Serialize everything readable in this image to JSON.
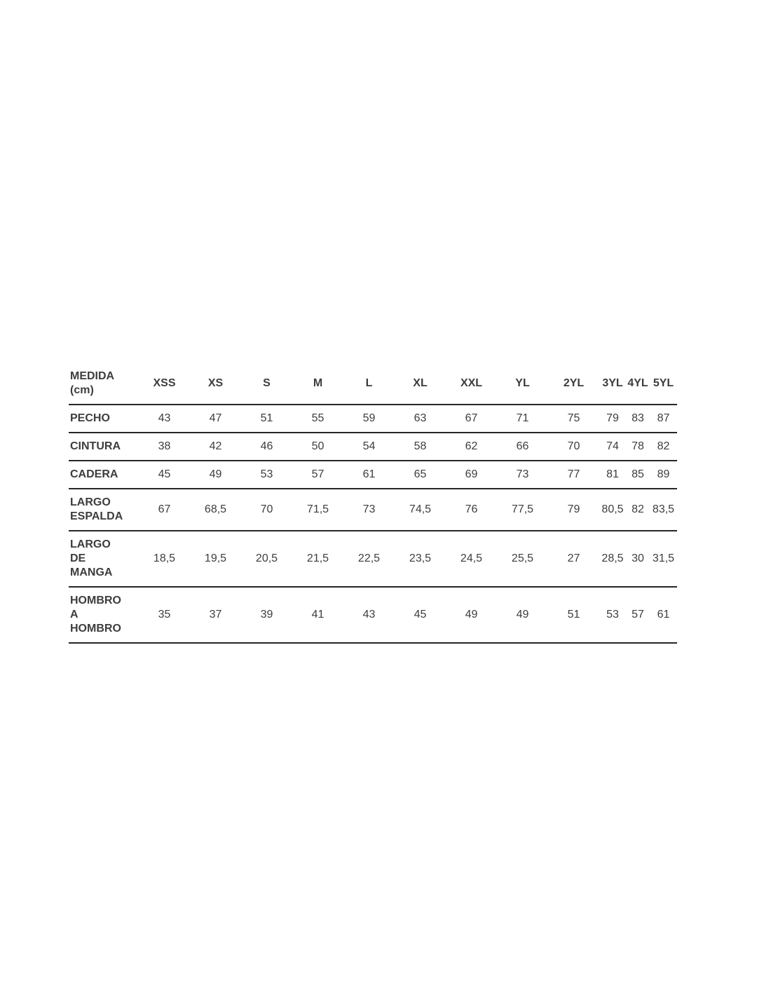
{
  "colors": {
    "text": "#3d3d3d",
    "line": "#262626",
    "background": "#ffffff"
  },
  "chart_data": {
    "type": "table",
    "title": "MEDIDA (cm)",
    "columns": [
      "XSS",
      "XS",
      "S",
      "M",
      "L",
      "XL",
      "XXL",
      "YL",
      "2YL",
      "3YL",
      "4YL",
      "5YL"
    ],
    "rows": [
      {
        "label": "PECHO",
        "values": [
          "43",
          "47",
          "51",
          "55",
          "59",
          "63",
          "67",
          "71",
          "75",
          "79",
          "83",
          "87"
        ]
      },
      {
        "label": "CINTURA",
        "values": [
          "38",
          "42",
          "46",
          "50",
          "54",
          "58",
          "62",
          "66",
          "70",
          "74",
          "78",
          "82"
        ]
      },
      {
        "label": "CADERA",
        "values": [
          "45",
          "49",
          "53",
          "57",
          "61",
          "65",
          "69",
          "73",
          "77",
          "81",
          "85",
          "89"
        ]
      },
      {
        "label": "LARGO ESPALDA",
        "values": [
          "67",
          "68,5",
          "70",
          "71,5",
          "73",
          "74,5",
          "76",
          "77,5",
          "79",
          "80,5",
          "82",
          "83,5"
        ]
      },
      {
        "label": "LARGO DE MANGA",
        "values": [
          "18,5",
          "19,5",
          "20,5",
          "21,5",
          "22,5",
          "23,5",
          "24,5",
          "25,5",
          "27",
          "28,5",
          "30",
          "31,5"
        ]
      },
      {
        "label": "HOMBRO A HOMBRO",
        "values": [
          "35",
          "37",
          "39",
          "41",
          "43",
          "45",
          "49",
          "49",
          "51",
          "53",
          "57",
          "61"
        ]
      }
    ]
  },
  "table": {
    "header": {
      "label": "MEDIDA (cm)",
      "sizes": [
        "XSS",
        "XS",
        "S",
        "M",
        "L",
        "XL",
        "XXL",
        "YL",
        "2YL",
        "3YL",
        "4YL",
        "5YL"
      ]
    },
    "rows": [
      {
        "label": "PECHO",
        "values": [
          "43",
          "47",
          "51",
          "55",
          "59",
          "63",
          "67",
          "71",
          "75",
          "79",
          "83",
          "87"
        ]
      },
      {
        "label": "CINTURA",
        "values": [
          "38",
          "42",
          "46",
          "50",
          "54",
          "58",
          "62",
          "66",
          "70",
          "74",
          "78",
          "82"
        ]
      },
      {
        "label": "CADERA",
        "values": [
          "45",
          "49",
          "53",
          "57",
          "61",
          "65",
          "69",
          "73",
          "77",
          "81",
          "85",
          "89"
        ]
      },
      {
        "label": "LARGO ESPALDA",
        "values": [
          "67",
          "68,5",
          "70",
          "71,5",
          "73",
          "74,5",
          "76",
          "77,5",
          "79",
          "80,5",
          "82",
          "83,5"
        ]
      },
      {
        "label": "LARGO DE MANGA",
        "values": [
          "18,5",
          "19,5",
          "20,5",
          "21,5",
          "22,5",
          "23,5",
          "24,5",
          "25,5",
          "27",
          "28,5",
          "30",
          "31,5"
        ]
      },
      {
        "label": "HOMBRO A HOMBRO",
        "values": [
          "35",
          "37",
          "39",
          "41",
          "43",
          "45",
          "49",
          "49",
          "51",
          "53",
          "57",
          "61"
        ]
      }
    ]
  }
}
